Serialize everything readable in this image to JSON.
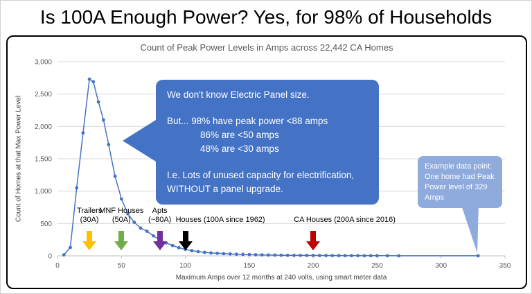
{
  "title": "Is 100A Enough Power? Yes, for 98% of Households",
  "colors": {
    "series_blue": "#4472C4",
    "callout_blue": "#4472C4",
    "example_blue": "#8FAADC",
    "grid_gray": "#D9D9D9",
    "axis_text": "#595959"
  },
  "chart": {
    "title": "Count of Peak Power Levels in Amps across 22,442 CA Homes",
    "ylabel": "Count of Homes at that Max Power Level",
    "xlabel": "Maximum Amps over 12 months at 240 volts, using smart meter data"
  },
  "chart_data": {
    "type": "line",
    "title": "Count of Peak Power Levels in Amps across 22,442 CA Homes",
    "xlabel": "Maximum Amps over 12 months at 240 volts, using smart meter data",
    "ylabel": "Count of Homes at that Max Power Level",
    "xlim": [
      0,
      350
    ],
    "ylim": [
      0,
      3000
    ],
    "x_ticks": [
      0,
      50,
      100,
      150,
      200,
      250,
      300,
      350
    ],
    "y_ticks": [
      "0",
      "500",
      "1,000",
      "1,500",
      "2,000",
      "2,500",
      "3,000"
    ],
    "grid": "horizontal",
    "legend": "none",
    "x": [
      5,
      10,
      15,
      20,
      25,
      28,
      32,
      36,
      40,
      45,
      50,
      55,
      60,
      65,
      70,
      75,
      80,
      85,
      90,
      95,
      100,
      105,
      110,
      115,
      120,
      125,
      130,
      135,
      140,
      145,
      150,
      155,
      160,
      165,
      170,
      175,
      180,
      185,
      190,
      195,
      200,
      205,
      210,
      215,
      220,
      225,
      230,
      235,
      240,
      245,
      250,
      258,
      267,
      329
    ],
    "values": [
      15,
      130,
      1050,
      1900,
      2730,
      2690,
      2380,
      2100,
      1720,
      1230,
      880,
      650,
      520,
      430,
      380,
      310,
      250,
      200,
      160,
      125,
      100,
      80,
      65,
      55,
      45,
      40,
      34,
      30,
      26,
      22,
      20,
      17,
      15,
      13,
      12,
      10,
      9,
      8,
      7,
      6,
      6,
      5,
      5,
      4,
      4,
      3,
      3,
      3,
      2,
      2,
      2,
      2,
      1,
      1
    ],
    "annotations": [
      {
        "id": "trailers",
        "lines": [
          "Trailers",
          "(30A)"
        ],
        "x": 25,
        "color": "#FFC000",
        "align": "center"
      },
      {
        "id": "mnf-houses",
        "lines": [
          "MNF Houses",
          "(50A)"
        ],
        "x": 50,
        "color": "#70AD47",
        "align": "center"
      },
      {
        "id": "apts",
        "lines": [
          "Apts",
          "(~80A)"
        ],
        "x": 80,
        "color": "#7030A0",
        "align": "center"
      },
      {
        "id": "houses-100a",
        "lines": [
          "Houses (100A since 1962)"
        ],
        "x": 100,
        "color": "#000000",
        "align": "left",
        "label_offset": -14
      },
      {
        "id": "ca-houses-200a",
        "lines": [
          "CA Houses (200A since 2016)"
        ],
        "x": 200,
        "color": "#C00000",
        "align": "left",
        "label_offset": -28
      }
    ]
  },
  "main_callout": {
    "lines": [
      {
        "text": "We don't know Electric Panel size.",
        "gap_after": true
      },
      {
        "text": "But... 98% have peak power <88 amps"
      },
      {
        "text": "86% are <50 amps",
        "indent": true
      },
      {
        "text": "48% are <30 amps",
        "indent": true,
        "gap_after": true
      },
      {
        "text": "I.e. Lots of unused capacity for electrification,"
      },
      {
        "text": "WITHOUT a panel upgrade."
      }
    ]
  },
  "example_callout": {
    "text": "Example data point: One home had Peak Power level of 329 Amps"
  }
}
